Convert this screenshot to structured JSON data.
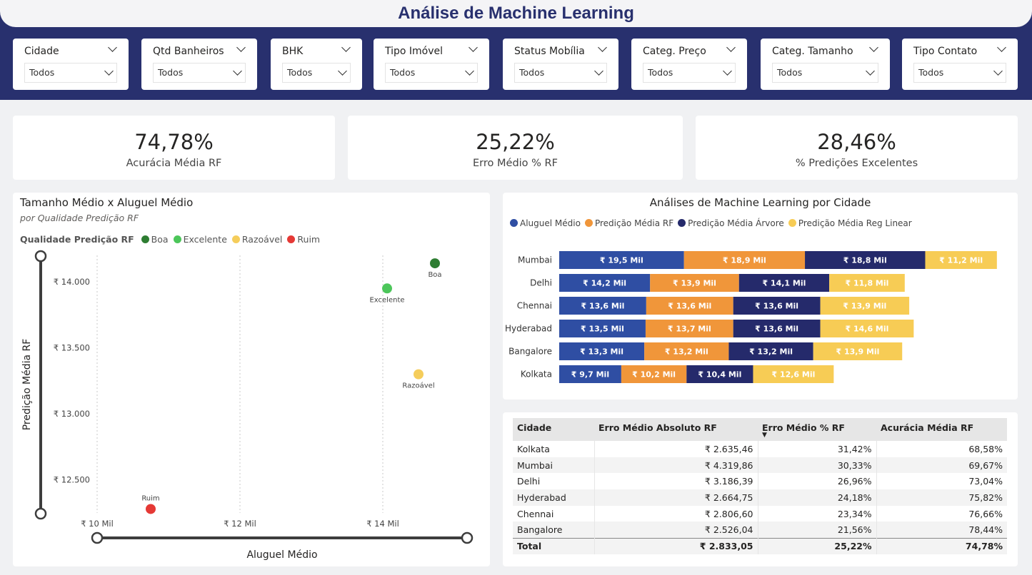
{
  "header": {
    "title": "Análise de Machine Learning"
  },
  "slicers": [
    {
      "label": "Cidade",
      "value": "Todos"
    },
    {
      "label": "Qtd Banheiros",
      "value": "Todos"
    },
    {
      "label": "BHK",
      "value": "Todos"
    },
    {
      "label": "Tipo Imóvel",
      "value": "Todos"
    },
    {
      "label": "Status Mobília",
      "value": "Todos"
    },
    {
      "label": "Categ. Preço",
      "value": "Todos"
    },
    {
      "label": "Categ. Tamanho",
      "value": "Todos"
    },
    {
      "label": "Tipo Contato",
      "value": "Todos"
    }
  ],
  "kpis": [
    {
      "value": "74,78%",
      "label": "Acurácia Média RF"
    },
    {
      "value": "25,22%",
      "label": "Erro Médio % RF"
    },
    {
      "value": "28,46%",
      "label": "% Predições Excelentes"
    }
  ],
  "scatter": {
    "title": "Tamanho Médio x Aluguel Médio",
    "subtitle": "por Qualidade Predição RF",
    "legend_title": "Qualidade Predição RF"
  },
  "bars": {
    "title": "Análises de Machine Learning por Cidade"
  },
  "table": {
    "headers": [
      "Cidade",
      "Erro Médio Absoluto RF",
      "Erro Médio % RF",
      "Acurácia Média RF"
    ],
    "rows": [
      [
        "Kolkata",
        "₹ 2.635,46",
        "31,42%",
        "68,58%"
      ],
      [
        "Mumbai",
        "₹ 4.319,86",
        "30,33%",
        "69,67%"
      ],
      [
        "Delhi",
        "₹ 3.186,39",
        "26,96%",
        "73,04%"
      ],
      [
        "Hyderabad",
        "₹ 2.664,75",
        "24,18%",
        "75,82%"
      ],
      [
        "Chennai",
        "₹ 2.806,60",
        "23,34%",
        "76,66%"
      ],
      [
        "Bangalore",
        "₹ 2.526,04",
        "21,56%",
        "78,44%"
      ]
    ],
    "total": [
      "Total",
      "₹ 2.833,05",
      "25,22%",
      "74,78%"
    ],
    "sort_icon": "sort-descending-icon"
  },
  "colors": {
    "header_band": "#28306e",
    "boa": "#2e7d32",
    "excelente": "#4cc65a",
    "razoavel": "#f5cd5b",
    "ruim": "#e53935",
    "aluguel": "#2f4ea3",
    "pred_rf": "#f0963a",
    "pred_arvore": "#252a6b",
    "pred_reg": "#f7cc55"
  },
  "chart_data": [
    {
      "type": "scatter",
      "title": "Tamanho Médio x Aluguel Médio",
      "subtitle": "por Qualidade Predição RF",
      "xlabel": "Aluguel Médio",
      "ylabel": "Predição Média RF",
      "xlim": [
        10000,
        15000
      ],
      "ylim": [
        12250,
        14200
      ],
      "x_ticks": [
        10000,
        12000,
        14000
      ],
      "x_tick_labels": [
        "₹ 10 Mil",
        "₹ 12 Mil",
        "₹ 14 Mil"
      ],
      "y_ticks": [
        12500,
        13000,
        13500,
        14000
      ],
      "y_tick_labels": [
        "₹ 12.500",
        "₹ 13.000",
        "₹ 13.500",
        "₹ 14.000"
      ],
      "legend_position": "top-left",
      "series": [
        {
          "name": "Boa",
          "color": "#2e7d32",
          "x": 14730,
          "y": 14140
        },
        {
          "name": "Excelente",
          "color": "#4cc65a",
          "x": 14060,
          "y": 13950
        },
        {
          "name": "Razoável",
          "color": "#f5cd5b",
          "x": 14500,
          "y": 13300
        },
        {
          "name": "Ruim",
          "color": "#e53935",
          "x": 10750,
          "y": 12280
        }
      ]
    },
    {
      "type": "bar",
      "title": "Análises de Machine Learning por Cidade",
      "stacked": true,
      "orientation": "horizontal",
      "legend_position": "top-left",
      "categories": [
        "Mumbai",
        "Delhi",
        "Chennai",
        "Hyderabad",
        "Bangalore",
        "Kolkata"
      ],
      "series": [
        {
          "name": "Aluguel Médio",
          "color": "#2f4ea3",
          "values": [
            19.5,
            14.2,
            13.6,
            13.5,
            13.3,
            9.7
          ],
          "labels": [
            "₹ 19,5 Mil",
            "₹ 14,2 Mil",
            "₹ 13,6 Mil",
            "₹ 13,5 Mil",
            "₹ 13,3 Mil",
            "₹ 9,7 Mil"
          ]
        },
        {
          "name": "Predição Média RF",
          "color": "#f0963a",
          "values": [
            18.9,
            13.9,
            13.6,
            13.7,
            13.2,
            10.2
          ],
          "labels": [
            "₹ 18,9 Mil",
            "₹ 13,9 Mil",
            "₹ 13,6 Mil",
            "₹ 13,7 Mil",
            "₹ 13,2 Mil",
            "₹ 10,2 Mil"
          ]
        },
        {
          "name": "Predição Média Árvore",
          "color": "#252a6b",
          "values": [
            18.8,
            14.1,
            13.6,
            13.6,
            13.2,
            10.4
          ],
          "labels": [
            "₹ 18,8 Mil",
            "₹ 14,1 Mil",
            "₹ 13,6 Mil",
            "₹ 13,6 Mil",
            "₹ 13,2 Mil",
            "₹ 10,4 Mil"
          ]
        },
        {
          "name": "Predição Média Reg Linear",
          "color": "#f7cc55",
          "values": [
            11.2,
            11.8,
            13.9,
            14.6,
            13.9,
            12.6
          ],
          "labels": [
            "₹ 11,2 Mil",
            "₹ 11,8 Mil",
            "₹ 13,9 Mil",
            "₹ 14,6 Mil",
            "₹ 13,9 Mil",
            "₹ 12,6 Mil"
          ]
        }
      ]
    }
  ]
}
